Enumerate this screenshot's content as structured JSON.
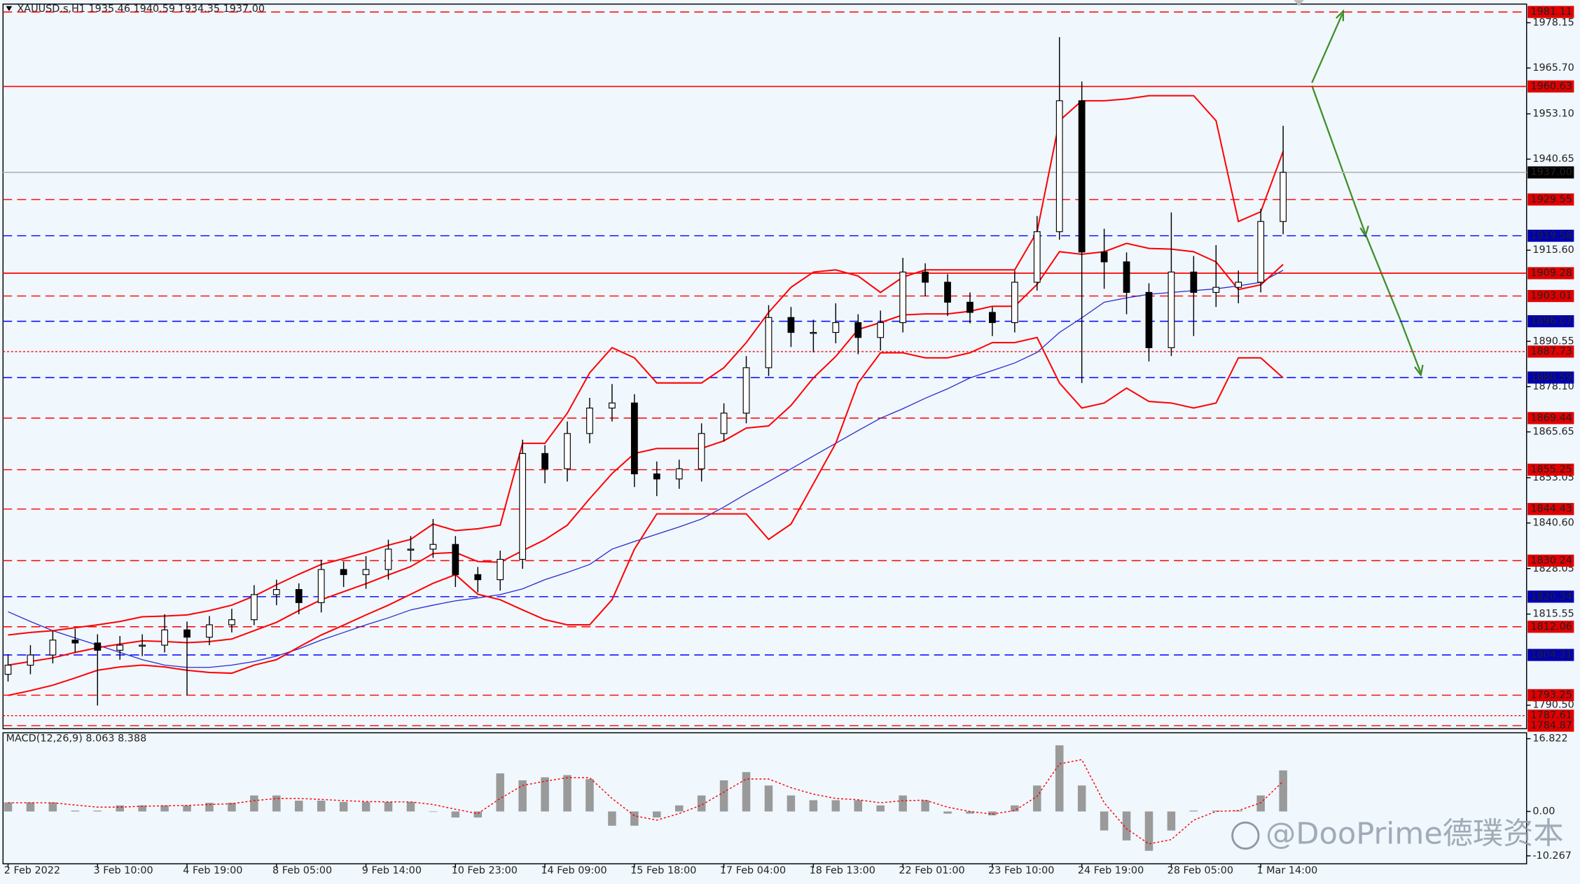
{
  "chart_data": [
    {
      "type": "candlestick",
      "title": "XAUUSD.s,H1  1935.46 1940.59 1934.35 1937.00",
      "categories": [
        "2 Feb 2022",
        null,
        null,
        null,
        "3 Feb 10:00",
        null,
        null,
        null,
        "4 Feb 19:00",
        null,
        null,
        null,
        "8 Feb 05:00",
        null,
        null,
        null,
        "9 Feb 14:00",
        null,
        null,
        null,
        "10 Feb 23:00",
        null,
        null,
        null,
        "14 Feb 09:00",
        null,
        null,
        null,
        "15 Feb 18:00",
        null,
        null,
        null,
        "17 Feb 04:00",
        null,
        null,
        null,
        "18 Feb 13:00",
        null,
        null,
        null,
        "22 Feb 01:00",
        null,
        null,
        null,
        "23 Feb 10:00",
        null,
        null,
        null,
        "24 Feb 19:00",
        null,
        null,
        null,
        "28 Feb 05:00",
        null,
        null,
        null,
        "1 Mar 14:00",
        null
      ],
      "open": [
        1799.0,
        1801.5,
        1804.3,
        1808.4,
        1807.6,
        1805.6,
        1807.0,
        1807.0,
        1811.2,
        1809.2,
        1812.6,
        1814.0,
        1820.9,
        1822.3,
        1818.7,
        1827.8,
        1826.4,
        1827.8,
        1833.4,
        1833.4,
        1834.7,
        1826.4,
        1825.0,
        1830.6,
        1859.7,
        1855.5,
        1865.2,
        1872.2,
        1873.6,
        1854.1,
        1852.7,
        1855.5,
        1865.2,
        1870.8,
        1883.3,
        1897.1,
        1893.0,
        1893.0,
        1895.7,
        1891.6,
        1895.7,
        1909.6,
        1906.8,
        1901.3,
        1898.5,
        1895.7,
        1906.8,
        1920.7,
        1956.7,
        1915.1,
        1912.4,
        1904.0,
        1888.8,
        1909.6,
        1904.0,
        1905.4,
        1906.8,
        1923.5
      ],
      "high": [
        1804.5,
        1807.0,
        1811.0,
        1811.5,
        1810.0,
        1809.5,
        1810.0,
        1815.5,
        1813.5,
        1815.0,
        1817.0,
        1823.5,
        1825.0,
        1824.0,
        1830.5,
        1830.0,
        1831.5,
        1836.0,
        1837.0,
        1841.7,
        1837.0,
        1828.5,
        1833.0,
        1863.5,
        1862.0,
        1868.5,
        1875.0,
        1878.8,
        1876.0,
        1857.5,
        1858.0,
        1868.0,
        1873.5,
        1886.5,
        1900.5,
        1900.0,
        1896.5,
        1901.0,
        1898.0,
        1899.0,
        1913.5,
        1912.0,
        1909.0,
        1904.0,
        1900.0,
        1910.0,
        1925.0,
        1974.2,
        1962.0,
        1921.5,
        1915.0,
        1906.5,
        1926.0,
        1914.0,
        1917.0,
        1910.0,
        1927.0,
        1949.8
      ],
      "low": [
        1797.0,
        1799.0,
        1802.0,
        1805.0,
        1790.4,
        1803.0,
        1804.0,
        1805.0,
        1793.2,
        1807.0,
        1810.5,
        1812.5,
        1818.0,
        1815.5,
        1816.0,
        1823.0,
        1822.5,
        1825.0,
        1830.0,
        1831.0,
        1823.0,
        1821.5,
        1822.0,
        1828.0,
        1851.5,
        1852.0,
        1862.5,
        1868.5,
        1850.5,
        1848.0,
        1850.0,
        1852.0,
        1863.0,
        1868.0,
        1881.0,
        1889.0,
        1887.5,
        1890.0,
        1887.0,
        1888.0,
        1893.0,
        1903.0,
        1897.5,
        1895.5,
        1892.0,
        1893.0,
        1904.5,
        1918.5,
        1879.1,
        1905.0,
        1898.0,
        1885.0,
        1886.5,
        1892.0,
        1900.0,
        1901.0,
        1904.0,
        1920.0
      ],
      "close": [
        1801.5,
        1804.3,
        1808.4,
        1807.6,
        1805.6,
        1807.0,
        1807.0,
        1811.2,
        1809.2,
        1812.6,
        1814.0,
        1820.9,
        1822.3,
        1818.7,
        1827.8,
        1826.4,
        1827.8,
        1833.4,
        1833.4,
        1834.7,
        1826.4,
        1825.0,
        1830.6,
        1859.7,
        1855.5,
        1865.2,
        1872.2,
        1873.6,
        1854.1,
        1852.7,
        1855.5,
        1865.2,
        1870.8,
        1883.3,
        1897.1,
        1893.0,
        1893.0,
        1895.7,
        1891.6,
        1895.7,
        1909.6,
        1906.8,
        1901.3,
        1898.5,
        1895.7,
        1906.8,
        1920.7,
        1956.7,
        1915.1,
        1912.4,
        1904.0,
        1888.8,
        1909.6,
        1904.0,
        1905.4,
        1906.8,
        1923.5,
        1937.0
      ],
      "candle_color": "#000000",
      "bollinger": {
        "color": "#ff0000",
        "upper": [
          1809.8,
          1810.5,
          1811.0,
          1811.8,
          1812.6,
          1813.5,
          1814.8,
          1815.0,
          1815.3,
          1816.5,
          1818.0,
          1820.5,
          1823.6,
          1826.5,
          1829.2,
          1830.8,
          1832.5,
          1834.5,
          1836.1,
          1840.3,
          1838.5,
          1839.0,
          1840.0,
          1862.5,
          1862.5,
          1870.8,
          1881.9,
          1888.8,
          1886.0,
          1879.1,
          1879.1,
          1879.1,
          1883.3,
          1890.2,
          1898.5,
          1905.4,
          1909.6,
          1910.2,
          1908.5,
          1904.0,
          1908.2,
          1910.2,
          1910.2,
          1910.2,
          1910.2,
          1910.2,
          1920.7,
          1951.2,
          1956.7,
          1956.7,
          1957.2,
          1958.1,
          1958.1,
          1958.1,
          1951.2,
          1923.5,
          1926.2,
          1942.8
        ],
        "middle": [
          1801.5,
          1802.5,
          1803.5,
          1805.0,
          1806.3,
          1807.3,
          1808.2,
          1808.0,
          1807.7,
          1808.0,
          1808.7,
          1811.0,
          1813.3,
          1816.5,
          1819.5,
          1821.7,
          1823.9,
          1826.3,
          1828.6,
          1832.2,
          1832.5,
          1830.0,
          1829.8,
          1833.0,
          1836.0,
          1840.0,
          1847.3,
          1854.2,
          1859.7,
          1861.1,
          1861.1,
          1861.1,
          1863.2,
          1866.7,
          1867.3,
          1872.9,
          1880.5,
          1886.4,
          1893.8,
          1895.7,
          1897.8,
          1898.1,
          1898.1,
          1898.8,
          1900.2,
          1900.2,
          1906.2,
          1915.2,
          1914.5,
          1915.2,
          1917.5,
          1916.1,
          1915.9,
          1915.2,
          1912.4,
          1904.8,
          1906.1,
          1911.7
        ],
        "lower": [
          1793.2,
          1794.5,
          1796.0,
          1798.0,
          1800.1,
          1801.0,
          1801.5,
          1801.0,
          1800.1,
          1799.5,
          1799.3,
          1801.5,
          1803.0,
          1806.5,
          1809.8,
          1812.5,
          1815.3,
          1818.0,
          1821.0,
          1824.0,
          1826.4,
          1821.0,
          1819.5,
          1816.7,
          1814.0,
          1812.6,
          1812.6,
          1819.5,
          1833.4,
          1843.1,
          1843.1,
          1843.1,
          1843.1,
          1843.1,
          1836.1,
          1840.3,
          1851.4,
          1862.5,
          1879.1,
          1887.4,
          1887.4,
          1886.0,
          1886.0,
          1887.4,
          1890.2,
          1890.2,
          1891.6,
          1879.1,
          1872.2,
          1873.6,
          1877.7,
          1874.0,
          1873.6,
          1872.2,
          1873.6,
          1886.0,
          1886.0,
          1880.5
        ]
      },
      "ma": {
        "color": "#2a2acd",
        "values": [
          1816.2,
          1813.5,
          1811.0,
          1809.0,
          1807.0,
          1805.0,
          1803.0,
          1801.5,
          1800.9,
          1800.9,
          1801.5,
          1802.5,
          1804.0,
          1806.0,
          1808.4,
          1810.5,
          1812.6,
          1814.5,
          1816.7,
          1818.0,
          1819.2,
          1820.0,
          1820.9,
          1822.5,
          1825.0,
          1827.0,
          1829.2,
          1833.4,
          1835.5,
          1837.5,
          1839.5,
          1841.7,
          1845.0,
          1848.6,
          1852.0,
          1855.5,
          1859.0,
          1862.5,
          1866.0,
          1869.4,
          1872.0,
          1874.9,
          1877.5,
          1880.5,
          1882.5,
          1884.6,
          1887.5,
          1893.0,
          1897.0,
          1901.3,
          1902.5,
          1903.5,
          1904.0,
          1904.5,
          1905.0,
          1905.8,
          1906.8,
          1910.1
        ]
      },
      "ylim": [
        1784.3,
        1983.0
      ],
      "yticks": [
        {
          "value": 1978.15,
          "label": "1978.15"
        },
        {
          "value": 1965.7,
          "label": "1965.70"
        },
        {
          "value": 1953.1,
          "label": "1953.10"
        },
        {
          "value": 1940.65,
          "label": "1940.65"
        },
        {
          "value": 1915.6,
          "label": "1915.60"
        },
        {
          "value": 1890.55,
          "label": "1890.55"
        },
        {
          "value": 1878.1,
          "label": "1878.10"
        },
        {
          "value": 1865.65,
          "label": "1865.65"
        },
        {
          "value": 1853.05,
          "label": "1853.05"
        },
        {
          "value": 1840.6,
          "label": "1840.60"
        },
        {
          "value": 1828.05,
          "label": "1828.05"
        },
        {
          "value": 1815.55,
          "label": "1815.55"
        },
        {
          "value": 1790.5,
          "label": "1790.50"
        }
      ],
      "levels": [
        {
          "value": 1981.11,
          "color": "#ff0000",
          "label_color": "#e00000",
          "style": "dashed"
        },
        {
          "value": 1960.63,
          "color": "#ff0000",
          "label_color": "#e00000",
          "style": "solid"
        },
        {
          "value": 1937,
          "label": "1937.00",
          "color": "#b8b8b8",
          "label_color": "#000000",
          "style": "solid"
        },
        {
          "value": 1929.55,
          "color": "#ff0000",
          "label_color": "#e00000",
          "style": "dashed"
        },
        {
          "value": 1919.58,
          "color": "#0000ff",
          "label_color": "#0000b0",
          "style": "dashed"
        },
        {
          "value": 1909.28,
          "color": "#ff0000",
          "label_color": "#e00000",
          "style": "solid"
        },
        {
          "value": 1903.01,
          "color": "#ff0000",
          "label_color": "#e00000",
          "style": "dashed"
        },
        {
          "value": 1896.07,
          "color": "#0000ff",
          "label_color": "#0000b0",
          "style": "dashed"
        },
        {
          "value": 1887.73,
          "color": "#ff0000",
          "label_color": "#e00000",
          "style": "dotted"
        },
        {
          "value": 1880.59,
          "color": "#0000ff",
          "label_color": "#0000b0",
          "style": "dashed"
        },
        {
          "value": 1869.44,
          "color": "#ff0000",
          "label_color": "#e00000",
          "style": "dashed"
        },
        {
          "value": 1855.25,
          "color": "#ff0000",
          "label_color": "#e00000",
          "style": "dashed"
        },
        {
          "value": 1844.43,
          "color": "#ff0000",
          "label_color": "#e00000",
          "style": "dashed"
        },
        {
          "value": 1830.24,
          "color": "#ff0000",
          "label_color": "#e00000",
          "style": "dashed"
        },
        {
          "value": 1820.34,
          "color": "#0000ff",
          "label_color": "#0000b0",
          "style": "dashed"
        },
        {
          "value": 1812.06,
          "color": "#ff0000",
          "label_color": "#e00000",
          "style": "dashed"
        },
        {
          "value": 1804.31,
          "color": "#0000ff",
          "label_color": "#0000b0",
          "style": "dashed"
        },
        {
          "value": 1793.25,
          "color": "#ff0000",
          "label_color": "#e00000",
          "style": "dashed"
        },
        {
          "value": 1787.61,
          "color": "#ff0000",
          "label_color": "#e00000",
          "style": "dotted"
        },
        {
          "value": 1784.87,
          "color": "#ff0000",
          "label_color": "#e00000",
          "style": "dashed"
        }
      ]
    },
    {
      "type": "bar",
      "title": "MACD(12,26,9) 8.063 8.388",
      "values": [
        2.1,
        2.1,
        2.1,
        0.2,
        0.2,
        1.4,
        1.4,
        1.4,
        1.4,
        2.0,
        2.0,
        3.7,
        3.7,
        2.5,
        2.5,
        2.2,
        2.2,
        2.2,
        2.2,
        0.0,
        -1.4,
        -1.4,
        8.8,
        7.2,
        7.9,
        8.4,
        7.5,
        -3.3,
        -3.3,
        -1.4,
        1.4,
        3.7,
        7.2,
        9.1,
        6.0,
        3.7,
        2.6,
        2.6,
        2.6,
        1.4,
        3.7,
        2.6,
        -0.5,
        -0.5,
        -0.9,
        1.4,
        6.0,
        15.3,
        6.0,
        -4.4,
        -6.7,
        -9.1,
        -4.4,
        0.2,
        0.2,
        0.2,
        3.7,
        9.5
      ],
      "color": "#9a9a9a",
      "signal": {
        "color": "#ff0000",
        "values": [
          2.0,
          2.0,
          2.0,
          1.5,
          1.0,
          1.0,
          1.2,
          1.3,
          1.4,
          1.6,
          1.8,
          2.5,
          3.0,
          3.0,
          2.8,
          2.5,
          2.3,
          2.2,
          2.2,
          1.6,
          0.5,
          -0.5,
          3.0,
          6.0,
          7.0,
          7.8,
          7.8,
          3.0,
          -1.0,
          -2.0,
          -0.5,
          1.5,
          4.5,
          7.5,
          7.5,
          5.5,
          4.0,
          3.0,
          2.7,
          2.0,
          2.5,
          2.6,
          1.0,
          0.0,
          -0.6,
          0.2,
          3.5,
          11.0,
          12.0,
          2.0,
          -4.0,
          -7.5,
          -6.5,
          -2.0,
          0.0,
          0.2,
          2.0,
          7.0
        ]
      },
      "ylim": [
        -12.1,
        18.2
      ],
      "yticks": [
        16.822,
        {
          "value": 0,
          "label": "0.00"
        },
        -10.267
      ]
    }
  ],
  "watermark": "@DooPrime德璞资本"
}
